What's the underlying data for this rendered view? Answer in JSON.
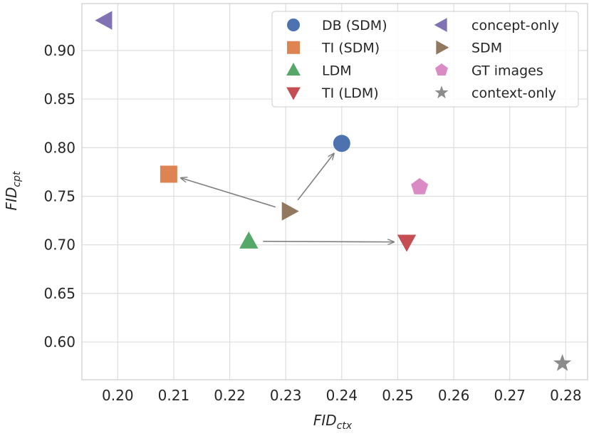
{
  "chart_data": {
    "type": "scatter",
    "title": "",
    "xlabel": {
      "base": "FID",
      "sub": "ctx"
    },
    "ylabel": {
      "base": "FID",
      "sub": "cpt"
    },
    "xlim": [
      0.1936,
      0.2839
    ],
    "ylim": [
      0.5612,
      0.9483
    ],
    "xticks": [
      "0.20",
      "0.21",
      "0.22",
      "0.23",
      "0.24",
      "0.25",
      "0.26",
      "0.27",
      "0.28"
    ],
    "yticks": [
      "0.60",
      "0.65",
      "0.70",
      "0.75",
      "0.80",
      "0.85",
      "0.90"
    ],
    "grid": true,
    "legend_placement": "top-right",
    "series": [
      {
        "name": "DB (SDM)",
        "marker": "circle",
        "color": "#4c72b0",
        "x": 0.24,
        "y": 0.8044
      },
      {
        "name": "TI (SDM)",
        "marker": "square",
        "color": "#dd8452",
        "x": 0.2091,
        "y": 0.7727
      },
      {
        "name": "LDM",
        "marker": "triangle-up",
        "color": "#55a868",
        "x": 0.2234,
        "y": 0.7037
      },
      {
        "name": "TI (LDM)",
        "marker": "triangle-down",
        "color": "#c44e52",
        "x": 0.2516,
        "y": 0.7029
      },
      {
        "name": "concept-only",
        "marker": "triangle-left",
        "color": "#8172b3",
        "x": 0.1977,
        "y": 0.931
      },
      {
        "name": "SDM",
        "marker": "triangle-right",
        "color": "#937860",
        "x": 0.2306,
        "y": 0.7346
      },
      {
        "name": "GT images",
        "marker": "pentagon",
        "color": "#da8bc3",
        "x": 0.2539,
        "y": 0.7595
      },
      {
        "name": "context-only",
        "marker": "star",
        "color": "#8c8c8c",
        "x": 0.2794,
        "y": 0.578
      }
    ],
    "arrows": [
      {
        "from": "SDM",
        "to": "TI (SDM)"
      },
      {
        "from": "SDM",
        "to": "DB (SDM)"
      },
      {
        "from": "LDM",
        "to": "TI (LDM)"
      }
    ]
  }
}
